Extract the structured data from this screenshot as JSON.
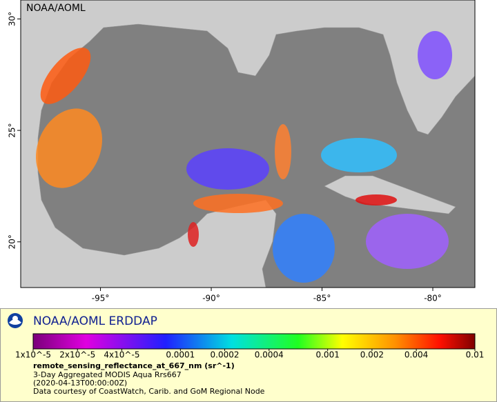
{
  "header": {
    "label": "NOAA/AOML"
  },
  "map": {
    "xlim": [
      -98.6,
      -78.1
    ],
    "ylim": [
      17.95,
      30.85
    ],
    "xticks": [
      {
        "value": -95,
        "label": "-95°"
      },
      {
        "value": -90,
        "label": "-90°"
      },
      {
        "value": -85,
        "label": "-85°"
      },
      {
        "value": -80,
        "label": "-80°"
      }
    ],
    "yticks": [
      {
        "value": 20,
        "label": "20°"
      },
      {
        "value": 25,
        "label": "25°"
      },
      {
        "value": 30,
        "label": "30°"
      }
    ]
  },
  "legend": {
    "title": "NOAA/AOML ERDDAP",
    "scale": "log",
    "range": [
      1e-05,
      0.01
    ],
    "ticks": [
      {
        "value": 1e-05,
        "label": "1x10^-5"
      },
      {
        "value": 2e-05,
        "label": "2x10^-5"
      },
      {
        "value": 4e-05,
        "label": "4x10^-5"
      },
      0.0001,
      0.0002,
      0.0004,
      0.001,
      0.002,
      0.004,
      0.01
    ],
    "variable": "remote_sensing_reflectance_at_667_nm (sr^-1)",
    "lines": [
      "3-Day Aggregated MODIS Aqua Rrs667",
      "(2020-04-13T00:00:00Z)",
      "Data courtesy of CoastWatch, Carib. and GoM Regional Node"
    ]
  }
}
